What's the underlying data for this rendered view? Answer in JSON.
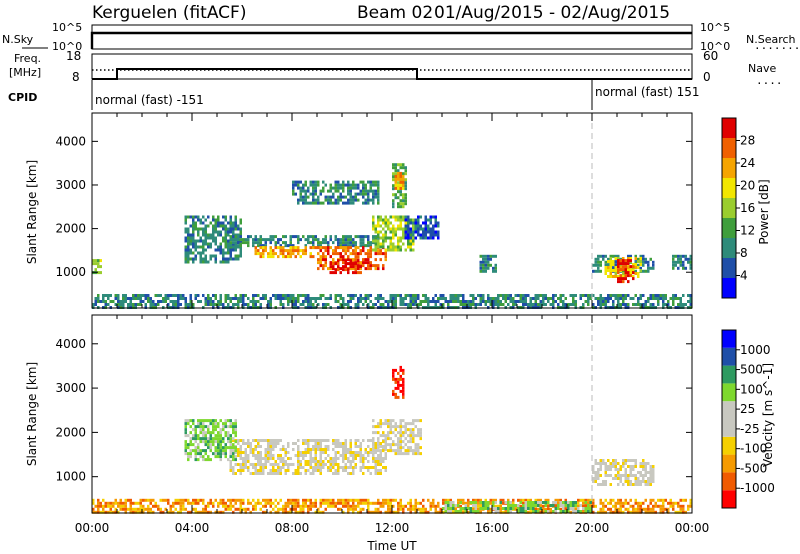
{
  "header": {
    "station": "Kerguelen (fitACF)",
    "beam": "Beam 02",
    "date_range": "01/Aug/2015 - 02/Aug/2015"
  },
  "nsky_panel": {
    "left_label": "N.Sky",
    "left_ticks": [
      "10^5",
      "10^0"
    ],
    "right_ticks": [
      "10^5",
      "10^0"
    ],
    "right_label": "N.Search",
    "right_legend_line": "......."
  },
  "freq_panel": {
    "left_label_line1": "Freq.",
    "left_label_line2": "[MHz]",
    "left_ticks": [
      "18",
      "8"
    ],
    "right_ticks": [
      "60",
      "0"
    ],
    "right_label": "Nave",
    "right_legend_line": "....",
    "steps": [
      {
        "from_hour": 0,
        "to_hour": 1,
        "mhz": 8
      },
      {
        "from_hour": 1,
        "to_hour": 13,
        "mhz": 12
      },
      {
        "from_hour": 13,
        "to_hour": 24,
        "mhz": 8
      }
    ]
  },
  "cpid": {
    "label": "CPID",
    "programs": [
      {
        "name": "normal (fast) -151",
        "start_hour": 0
      },
      {
        "name": "normal (fast) 151",
        "start_hour": 20
      }
    ]
  },
  "chart_data": [
    {
      "type": "heatmap",
      "name": "power",
      "ylabel": "Slant Range [km]",
      "yticks": [
        1000,
        2000,
        3000,
        4000
      ],
      "ylim": [
        180,
        4650
      ],
      "xlim": [
        0,
        24
      ],
      "colorbar_label": "Power [dB]",
      "colorbar_ticks": [
        "28",
        "24",
        "20",
        "16",
        "12",
        "8",
        "4"
      ],
      "colors": [
        "#0000ff",
        "#1f4fa8",
        "#2e8b7a",
        "#3f9e3c",
        "#9acd2e",
        "#f2e600",
        "#f5a400",
        "#f06000",
        "#e00000"
      ],
      "patches": [
        {
          "h0": 3.7,
          "h1": 6.0,
          "r0": 1200,
          "r1": 2300,
          "level": 2
        },
        {
          "h0": 5.5,
          "h1": 11.5,
          "r0": 1600,
          "r1": 1850,
          "level": 2
        },
        {
          "h0": 6.5,
          "h1": 9.0,
          "r0": 1350,
          "r1": 1600,
          "level": 6
        },
        {
          "h0": 9.0,
          "h1": 11.8,
          "r0": 1050,
          "r1": 1600,
          "level": 7
        },
        {
          "h0": 9.5,
          "h1": 10.8,
          "r0": 1000,
          "r1": 1300,
          "level": 8
        },
        {
          "h0": 11.2,
          "h1": 12.8,
          "r0": 1500,
          "r1": 2300,
          "level": 4
        },
        {
          "h0": 8.0,
          "h1": 11.5,
          "r0": 2600,
          "r1": 3100,
          "level": 2
        },
        {
          "h0": 12.0,
          "h1": 12.6,
          "r0": 2500,
          "r1": 3500,
          "level": 3
        },
        {
          "h0": 12.1,
          "h1": 12.4,
          "r0": 2900,
          "r1": 3300,
          "level": 6
        },
        {
          "h0": 12.5,
          "h1": 13.8,
          "r0": 1800,
          "r1": 2300,
          "level": 1
        },
        {
          "h0": 0.0,
          "h1": 0.4,
          "r0": 1000,
          "r1": 1300,
          "level": 4
        },
        {
          "h0": 15.5,
          "h1": 16.2,
          "r0": 1000,
          "r1": 1400,
          "level": 2
        },
        {
          "h0": 20.0,
          "h1": 22.5,
          "r0": 1000,
          "r1": 1400,
          "level": 2
        },
        {
          "h0": 20.5,
          "h1": 22.0,
          "r0": 900,
          "r1": 1350,
          "level": 5
        },
        {
          "h0": 21.0,
          "h1": 21.7,
          "r0": 800,
          "r1": 1300,
          "level": 8
        },
        {
          "h0": 23.2,
          "h1": 24.0,
          "r0": 1100,
          "r1": 1400,
          "level": 2
        },
        {
          "h0": 0.0,
          "h1": 24.0,
          "r0": 200,
          "r1": 500,
          "level": 2
        }
      ]
    },
    {
      "type": "heatmap",
      "name": "velocity",
      "ylabel": "Slant Range [km]",
      "yticks": [
        1000,
        2000,
        3000,
        4000
      ],
      "ylim": [
        180,
        4650
      ],
      "xlim": [
        0,
        24
      ],
      "xticks": [
        "00:00",
        "04:00",
        "08:00",
        "12:00",
        "16:00",
        "20:00",
        "00:00"
      ],
      "xlabel": "Time UT",
      "colorbar_label": "Velocity [m s^-1]",
      "colorbar_ticks": [
        "1000",
        "500",
        "100",
        "25",
        "-25",
        "-100",
        "-500",
        "-1000"
      ],
      "colors": [
        "#ff0000",
        "#f05a00",
        "#f59a00",
        "#f5d000",
        "#c8c8c0",
        "#c8c8c0",
        "#7ed82e",
        "#2e9a60",
        "#1f4fa8",
        "#0000ff"
      ],
      "patches": [
        {
          "h0": 5.5,
          "h1": 11.8,
          "r0": 1050,
          "r1": 1850,
          "level": 4
        },
        {
          "h0": 11.2,
          "h1": 13.2,
          "r0": 1500,
          "r1": 2300,
          "level": 4
        },
        {
          "h0": 3.7,
          "h1": 5.8,
          "r0": 1400,
          "r1": 2300,
          "level": 6
        },
        {
          "h0": 12.0,
          "h1": 12.5,
          "r0": 2800,
          "r1": 3500,
          "level": 0
        },
        {
          "h0": 20.0,
          "h1": 22.5,
          "r0": 800,
          "r1": 1400,
          "level": 4
        },
        {
          "h0": 0.0,
          "h1": 24.0,
          "r0": 200,
          "r1": 500,
          "level": 2
        },
        {
          "h0": 14.0,
          "h1": 20.0,
          "r0": 200,
          "r1": 450,
          "level": 6
        }
      ]
    }
  ],
  "dashed_marker_hour": 20
}
